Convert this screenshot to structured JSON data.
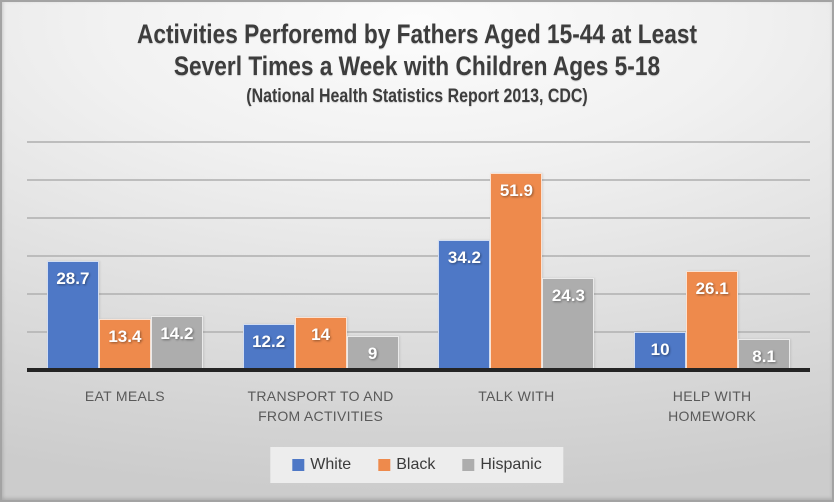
{
  "title": {
    "line1": "Activities Perforemd by Fathers Aged 15-44 at Least",
    "line2": "Severl Times a Week with Children Ages 5-18",
    "subtitle": "(National Health Statistics Report 2013, CDC)"
  },
  "chart_data": {
    "type": "bar",
    "title": "Activities Perforemd by Fathers Aged 15-44 at Least Severl Times a Week with Children Ages 5-18",
    "subtitle": "(National Health Statistics Report 2013, CDC)",
    "categories": [
      "EAT MEALS",
      "TRANSPORT TO AND FROM ACTIVITIES",
      "TALK WITH",
      "HELP WITH HOMEWORK"
    ],
    "series": [
      {
        "name": "White",
        "color": "#4E78C6",
        "values": [
          28.7,
          12.2,
          34.2,
          10
        ]
      },
      {
        "name": "Black",
        "color": "#EE8A4C",
        "values": [
          13.4,
          14,
          51.9,
          26.1
        ]
      },
      {
        "name": "Hispanic",
        "color": "#ADADAD",
        "values": [
          14.2,
          9,
          24.3,
          8.1
        ]
      }
    ],
    "xlabel": "",
    "ylabel": "",
    "ylim": [
      0,
      62.6
    ],
    "gridlines": [
      10,
      20,
      30,
      40,
      50,
      60
    ],
    "y_tick_labels_visible": false,
    "grid": "horizontal",
    "data_labels": "inside-end, white bold",
    "legend_position": "bottom"
  },
  "colors": {
    "axis_line": "#242424",
    "gridline": "#b5b5b5",
    "category_label": "#595959",
    "title_text": "#3d3d3d",
    "legend_background": "#f2f2f2"
  }
}
